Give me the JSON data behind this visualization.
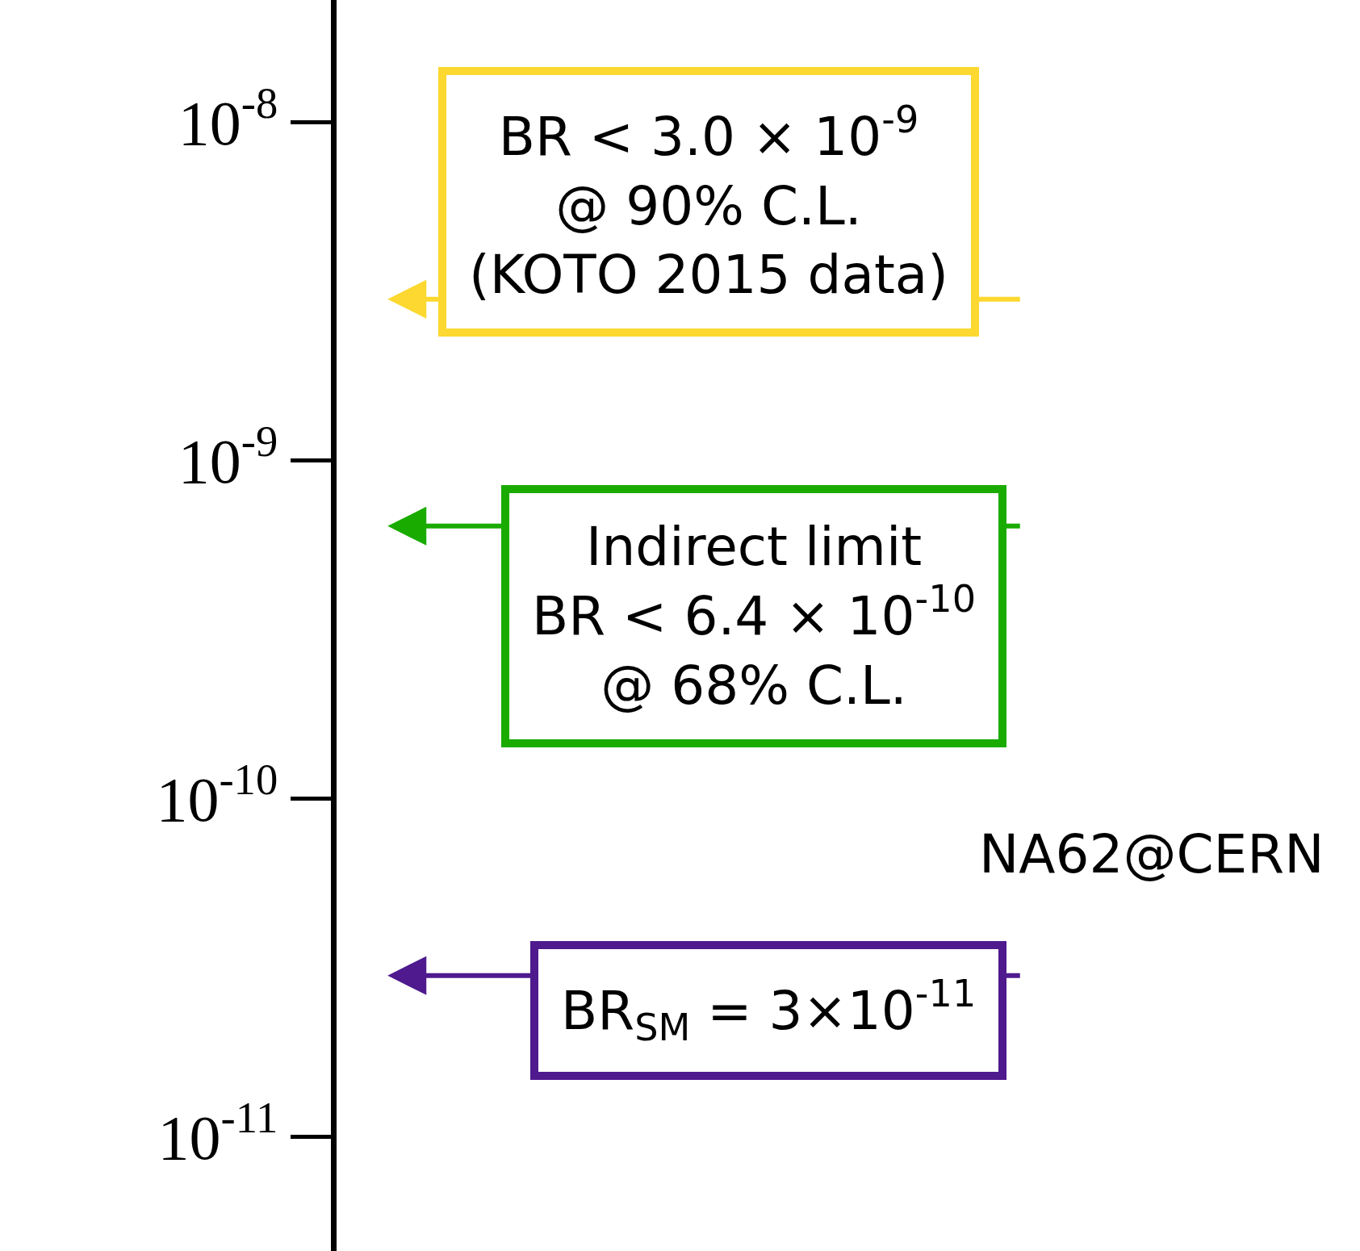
{
  "chart_data": {
    "type": "scatter",
    "log": true,
    "categories": [
      null
    ],
    "ylim": [
      4.6e-12,
      2.3e-08
    ],
    "yticks": [
      {
        "value": 1e-08,
        "label": "10$^{-8}$"
      },
      {
        "value": 1e-09,
        "label": "10$^{-9}$"
      },
      {
        "value": 1e-10,
        "label": "10$^{-10}$"
      },
      {
        "value": 1e-11,
        "label": "10$^{-11}$"
      }
    ],
    "ref_lines": [
      {
        "axis": "y",
        "value": 3e-09,
        "color": "#fcd830",
        "label": "BR < 3.0 × 10$^{-9}$\n@ 90% C.L.\n(KOTO 2015 data)"
      },
      {
        "axis": "y",
        "value": 6.4e-10,
        "color": "#1aab00",
        "label": "Indirect limit\nBR < 6.4 × 10$^{-10}$\n@ 68% C.L."
      },
      {
        "axis": "y",
        "value": 3e-11,
        "color": "#4e1a8e"
      }
    ],
    "annotations": [
      {
        "text": "BR$_{SM}$ = 3×10$^{-11}$",
        "y": 3e-11
      },
      "NA62@CERN"
    ]
  }
}
